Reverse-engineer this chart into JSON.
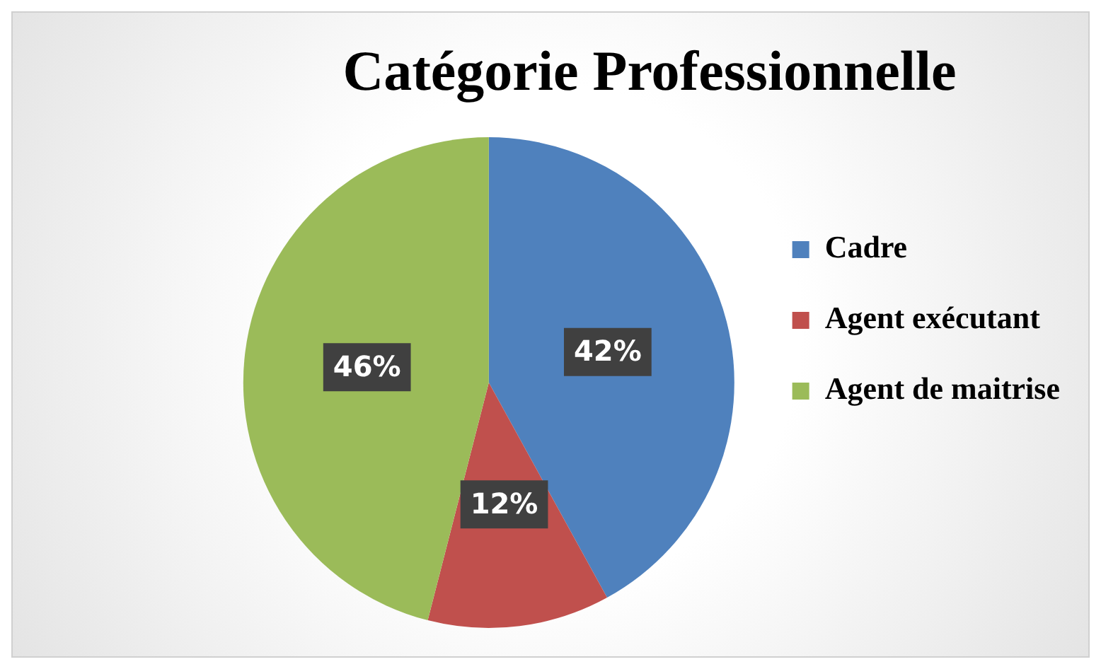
{
  "chart_data": {
    "type": "pie",
    "title": "Catégorie Professionnelle",
    "categories": [
      "Cadre",
      "Agent exécutant",
      "Agent de maitrise"
    ],
    "values": [
      42,
      12,
      46
    ],
    "colors": [
      "#4f81bd",
      "#c0504d",
      "#9bbb59"
    ],
    "value_labels": [
      "42%",
      "12%",
      "46%"
    ],
    "legend": "right"
  }
}
